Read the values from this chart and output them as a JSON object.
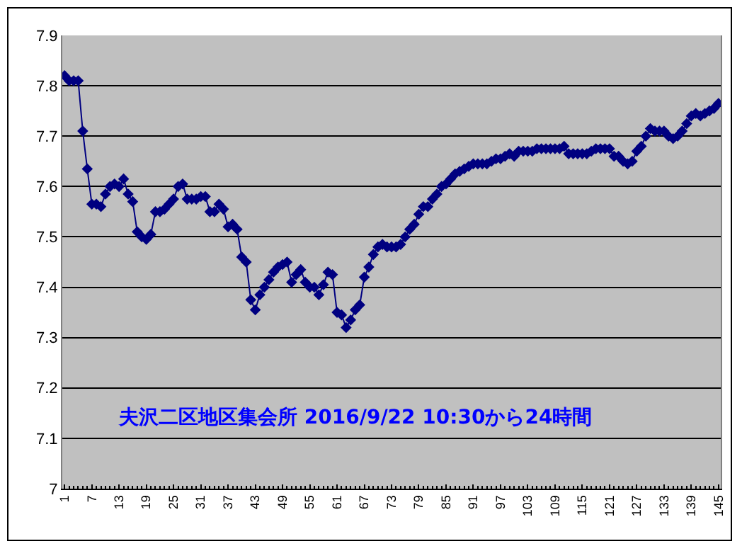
{
  "chart_data": {
    "type": "line",
    "categories": [
      "1",
      null,
      null,
      null,
      null,
      null,
      "7",
      null,
      null,
      null,
      null,
      null,
      "13",
      null,
      null,
      null,
      null,
      null,
      "19",
      null,
      null,
      null,
      null,
      null,
      "25",
      null,
      null,
      null,
      null,
      null,
      "31",
      null,
      null,
      null,
      null,
      null,
      "37",
      null,
      null,
      null,
      null,
      null,
      "43",
      null,
      null,
      null,
      null,
      null,
      "49",
      null,
      null,
      null,
      null,
      null,
      "55",
      null,
      null,
      null,
      null,
      null,
      "61",
      null,
      null,
      null,
      null,
      null,
      "67",
      null,
      null,
      null,
      null,
      null,
      "73",
      null,
      null,
      null,
      null,
      null,
      "79",
      null,
      null,
      null,
      null,
      null,
      "85",
      null,
      null,
      null,
      null,
      null,
      "91",
      null,
      null,
      null,
      null,
      null,
      "97",
      null,
      null,
      null,
      null,
      null,
      "103",
      null,
      null,
      null,
      null,
      null,
      "109",
      null,
      null,
      null,
      null,
      null,
      "115",
      null,
      null,
      null,
      null,
      null,
      "121",
      null,
      null,
      null,
      null,
      null,
      "127",
      null,
      null,
      null,
      null,
      null,
      "133",
      null,
      null,
      null,
      null,
      null,
      "139",
      null,
      null,
      null,
      null,
      null,
      "145"
    ],
    "series": [
      {
        "color": "#000080",
        "values": [
          7.82,
          7.81,
          7.81,
          7.81,
          7.71,
          7.635,
          7.565,
          7.565,
          7.56,
          7.585,
          7.6,
          7.605,
          7.6,
          7.615,
          7.585,
          7.57,
          7.51,
          7.5,
          7.495,
          7.505,
          7.55,
          7.55,
          7.555,
          7.565,
          7.575,
          7.6,
          7.605,
          7.575,
          7.575,
          7.575,
          7.58,
          7.58,
          7.55,
          7.55,
          7.565,
          7.555,
          7.52,
          7.525,
          7.515,
          7.46,
          7.45,
          7.375,
          7.355,
          7.385,
          7.4,
          7.415,
          7.43,
          7.44,
          7.445,
          7.45,
          7.41,
          7.425,
          7.435,
          7.41,
          7.4,
          7.4,
          7.385,
          7.405,
          7.43,
          7.425,
          7.35,
          7.345,
          7.32,
          7.335,
          7.355,
          7.365,
          7.42,
          7.44,
          7.465,
          7.48,
          7.485,
          7.48,
          7.48,
          7.48,
          7.485,
          7.5,
          7.515,
          7.525,
          7.545,
          7.56,
          7.56,
          7.575,
          7.585,
          7.6,
          7.605,
          7.615,
          7.625,
          7.63,
          7.635,
          7.64,
          7.645,
          7.645,
          7.645,
          7.645,
          7.65,
          7.655,
          7.655,
          7.66,
          7.665,
          7.66,
          7.67,
          7.67,
          7.67,
          7.67,
          7.675,
          7.675,
          7.675,
          7.675,
          7.675,
          7.675,
          7.68,
          7.665,
          7.665,
          7.665,
          7.665,
          7.665,
          7.67,
          7.675,
          7.675,
          7.675,
          7.675,
          7.66,
          7.66,
          7.65,
          7.645,
          7.65,
          7.67,
          7.68,
          7.7,
          7.715,
          7.71,
          7.71,
          7.71,
          7.7,
          7.695,
          7.7,
          7.71,
          7.725,
          7.74,
          7.745,
          7.74,
          7.745,
          7.75,
          7.755,
          7.765
        ]
      }
    ],
    "ylim": [
      7,
      7.9
    ],
    "yticks": [
      7,
      7.1,
      7.2,
      7.3,
      7.4,
      7.5,
      7.6,
      7.7,
      7.8,
      7.9
    ],
    "grid": "y",
    "marker": "diamond",
    "line_style": "solid",
    "annotations": [
      "夫沢二区地区集会所 2016/9/22 10:30から24時間"
    ]
  }
}
